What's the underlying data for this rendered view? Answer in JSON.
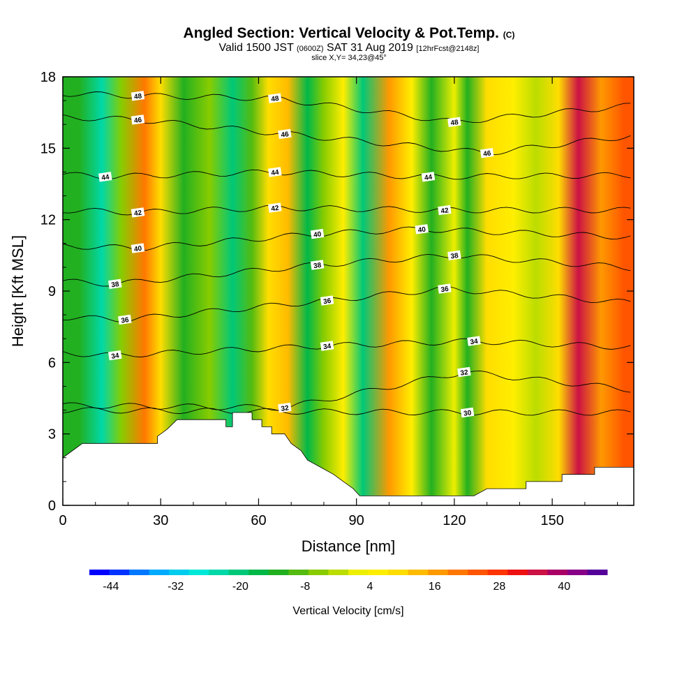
{
  "title": {
    "main": "Angled Section: Vertical Velocity & Pot.Temp.",
    "main_unit": "(C)",
    "valid_prefix": "Valid 1500 JST",
    "valid_z": "(0600Z)",
    "valid_date": "SAT 31 Aug 2019",
    "valid_fcst": "[12hrFcst@2148z]",
    "slice": "slice X,Y= 34,23@45°"
  },
  "chart_data": {
    "type": "heatmap",
    "xlabel": "Distance [nm]",
    "ylabel": "Height [Kft MSL]",
    "xlim": [
      0,
      175
    ],
    "ylim": [
      0,
      18
    ],
    "x_ticks": [
      "0",
      "30",
      "60",
      "90",
      "120",
      "150"
    ],
    "x_tick_values": [
      0,
      30,
      60,
      90,
      120,
      150
    ],
    "y_ticks": [
      "0",
      "3",
      "6",
      "9",
      "12",
      "15",
      "18"
    ],
    "y_tick_values": [
      0,
      3,
      6,
      9,
      12,
      15,
      18
    ],
    "colorbar": {
      "label": "Vertical Velocity [cm/s]",
      "min": -48,
      "max": 48,
      "tick_labels": [
        "-44",
        "-32",
        "-20",
        "-8",
        "4",
        "16",
        "28",
        "40"
      ],
      "tick_values": [
        -44,
        -32,
        -20,
        -8,
        4,
        16,
        28,
        40
      ],
      "colors": [
        "#0000ff",
        "#0033ff",
        "#0077ff",
        "#00aaff",
        "#00ccee",
        "#00e8d8",
        "#00d8a8",
        "#00c878",
        "#00b848",
        "#22b020",
        "#55bb10",
        "#88cc00",
        "#bbdd00",
        "#eeee00",
        "#ffee00",
        "#ffdd00",
        "#ffbb00",
        "#ff9900",
        "#ff7700",
        "#ff5500",
        "#ff3300",
        "#ee1111",
        "#cc1144",
        "#aa0066",
        "#880088",
        "#550099"
      ]
    },
    "velocity_columns": [
      {
        "x": 5,
        "v": -12
      },
      {
        "x": 12,
        "v": -25
      },
      {
        "x": 18,
        "v": -4
      },
      {
        "x": 25,
        "v": 20
      },
      {
        "x": 30,
        "v": 8
      },
      {
        "x": 37,
        "v": -14
      },
      {
        "x": 45,
        "v": -6
      },
      {
        "x": 52,
        "v": -22
      },
      {
        "x": 58,
        "v": -10
      },
      {
        "x": 63,
        "v": 10
      },
      {
        "x": 69,
        "v": 14
      },
      {
        "x": 75,
        "v": -16
      },
      {
        "x": 80,
        "v": -4
      },
      {
        "x": 86,
        "v": 6
      },
      {
        "x": 92,
        "v": -20
      },
      {
        "x": 100,
        "v": 18
      },
      {
        "x": 107,
        "v": 4
      },
      {
        "x": 113,
        "v": -14
      },
      {
        "x": 120,
        "v": 2
      },
      {
        "x": 124,
        "v": -12
      },
      {
        "x": 130,
        "v": 8
      },
      {
        "x": 138,
        "v": 4
      },
      {
        "x": 145,
        "v": -2
      },
      {
        "x": 152,
        "v": 10
      },
      {
        "x": 158,
        "v": 34
      },
      {
        "x": 165,
        "v": 18
      },
      {
        "x": 172,
        "v": 24
      }
    ],
    "terrain_kft": [
      [
        0,
        2.0
      ],
      [
        3,
        2.3
      ],
      [
        6,
        2.6
      ],
      [
        29,
        2.6
      ],
      [
        29,
        2.9
      ],
      [
        32,
        3.2
      ],
      [
        35,
        3.6
      ],
      [
        50,
        3.6
      ],
      [
        50,
        3.3
      ],
      [
        52,
        3.3
      ],
      [
        52,
        3.9
      ],
      [
        58,
        3.9
      ],
      [
        58,
        3.6
      ],
      [
        61,
        3.6
      ],
      [
        61,
        3.3
      ],
      [
        64,
        3.3
      ],
      [
        64,
        3.0
      ],
      [
        68,
        3.0
      ],
      [
        70,
        2.6
      ],
      [
        73,
        2.3
      ],
      [
        75,
        1.9
      ],
      [
        79,
        1.6
      ],
      [
        83,
        1.3
      ],
      [
        86,
        1.0
      ],
      [
        89,
        0.7
      ],
      [
        91,
        0.4
      ],
      [
        126,
        0.4
      ],
      [
        130,
        0.7
      ],
      [
        142,
        0.7
      ],
      [
        142,
        1.0
      ],
      [
        153,
        1.0
      ],
      [
        153,
        1.3
      ],
      [
        163,
        1.3
      ],
      [
        163,
        1.6
      ],
      [
        175,
        1.6
      ]
    ],
    "isentrope_labels": [
      {
        "text": "48",
        "x": 23,
        "y": 17.2
      },
      {
        "text": "46",
        "x": 23,
        "y": 16.2
      },
      {
        "text": "44",
        "x": 13,
        "y": 13.8
      },
      {
        "text": "42",
        "x": 23,
        "y": 12.3
      },
      {
        "text": "40",
        "x": 23,
        "y": 10.8
      },
      {
        "text": "38",
        "x": 16,
        "y": 9.3
      },
      {
        "text": "36",
        "x": 19,
        "y": 7.8
      },
      {
        "text": "34",
        "x": 16,
        "y": 6.3
      },
      {
        "text": "48",
        "x": 65,
        "y": 17.1
      },
      {
        "text": "46",
        "x": 68,
        "y": 15.6
      },
      {
        "text": "44",
        "x": 65,
        "y": 14.0
      },
      {
        "text": "42",
        "x": 65,
        "y": 12.5
      },
      {
        "text": "40",
        "x": 78,
        "y": 11.4
      },
      {
        "text": "38",
        "x": 78,
        "y": 10.1
      },
      {
        "text": "36",
        "x": 81,
        "y": 8.6
      },
      {
        "text": "34",
        "x": 81,
        "y": 6.7
      },
      {
        "text": "32",
        "x": 68,
        "y": 4.1
      },
      {
        "text": "48",
        "x": 120,
        "y": 16.1
      },
      {
        "text": "46",
        "x": 130,
        "y": 14.8
      },
      {
        "text": "44",
        "x": 112,
        "y": 13.8
      },
      {
        "text": "42",
        "x": 117,
        "y": 12.4
      },
      {
        "text": "40",
        "x": 110,
        "y": 11.6
      },
      {
        "text": "38",
        "x": 120,
        "y": 10.5
      },
      {
        "text": "36",
        "x": 117,
        "y": 9.1
      },
      {
        "text": "34",
        "x": 126,
        "y": 6.9
      },
      {
        "text": "32",
        "x": 123,
        "y": 5.6
      },
      {
        "text": "30",
        "x": 124,
        "y": 3.9
      }
    ]
  }
}
